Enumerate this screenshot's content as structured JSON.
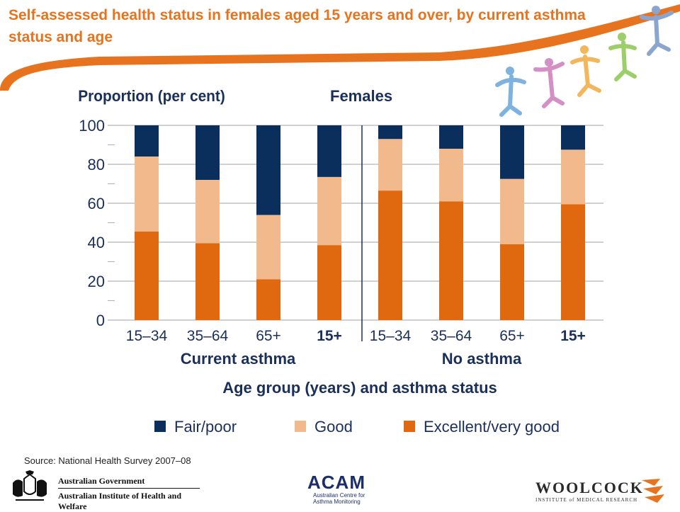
{
  "slide": {
    "title": "Self-assessed health status in females aged 15 years and over, by current asthma status and age",
    "source": "Source: National Health Survey 2007–08"
  },
  "colors": {
    "accent_orange": "#e8731e",
    "fair_poor": "#0a2f5c",
    "good": "#f2b98c",
    "excellent": "#e0690f",
    "grid": "#b5b5b5"
  },
  "chart_data": {
    "type": "bar",
    "stacked": true,
    "y_axis_title": "Proportion (per cent)",
    "panel_title": "Females",
    "xlabel": "Age group (years) and asthma status",
    "ylim": [
      0,
      100
    ],
    "yticks": [
      0,
      20,
      40,
      60,
      80,
      100
    ],
    "grid": true,
    "legend_position": "bottom",
    "groups": [
      {
        "label": "Current asthma",
        "categories": [
          "15–34",
          "35–64",
          "65+",
          "15+"
        ]
      },
      {
        "label": "No asthma",
        "categories": [
          "15–34",
          "35–64",
          "65+",
          "15+"
        ]
      }
    ],
    "bold_categories": [
      "15+"
    ],
    "series": [
      {
        "name": "Excellent/very good",
        "color": "#e0690f",
        "values": [
          45.5,
          39.5,
          21,
          38.5,
          66.5,
          61,
          39,
          59.5
        ]
      },
      {
        "name": "Good",
        "color": "#f2b98c",
        "values": [
          38.5,
          32.5,
          33,
          35,
          26.5,
          27,
          33.5,
          28
        ]
      },
      {
        "name": "Fair/poor",
        "color": "#0a2f5c",
        "values": [
          16,
          28,
          46,
          26.5,
          7,
          12,
          27.5,
          12.5
        ]
      }
    ],
    "legend_order": [
      "Fair/poor",
      "Good",
      "Excellent/very good"
    ]
  },
  "logos": {
    "aihw_line1": "Australian Government",
    "aihw_line2": "Australian Institute of Health and Welfare",
    "acam_name": "ACAM",
    "acam_sub1": "Australian Centre for",
    "acam_sub2": "Asthma Monitoring",
    "woolcock_name": "WOOLCOCK",
    "woolcock_sub": "INSTITUTE of MEDICAL RESEARCH"
  }
}
